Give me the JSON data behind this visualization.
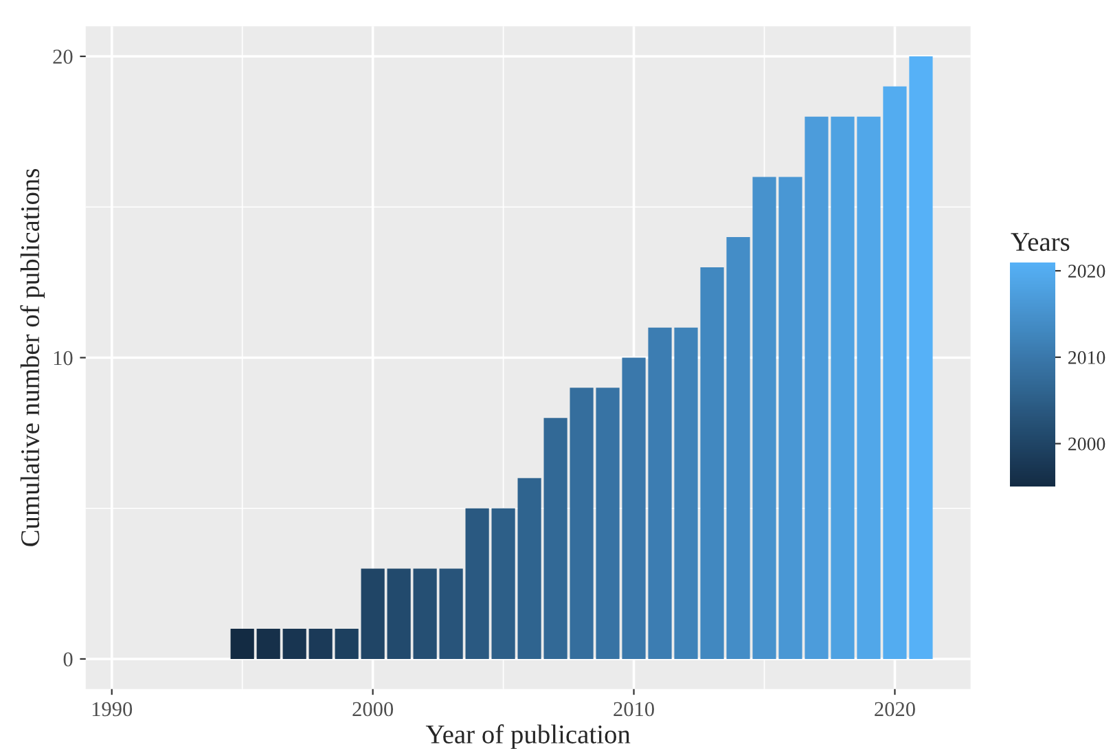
{
  "chart_data": {
    "type": "bar",
    "xlabel": "Year of publication",
    "ylabel": "Cumulative number of publications",
    "clabel": "Years",
    "x": [
      1995,
      1996,
      1997,
      1998,
      1999,
      2000,
      2001,
      2002,
      2003,
      2004,
      2005,
      2006,
      2007,
      2008,
      2009,
      2010,
      2011,
      2012,
      2013,
      2014,
      2015,
      2016,
      2017,
      2018,
      2019,
      2020,
      2021
    ],
    "values": [
      1,
      1,
      1,
      1,
      1,
      3,
      3,
      3,
      3,
      5,
      5,
      6,
      8,
      9,
      9,
      10,
      11,
      11,
      13,
      14,
      16,
      16,
      18,
      18,
      18,
      19,
      20
    ],
    "colors": [
      "#132b43",
      "#16304a",
      "#183551",
      "#1b3a58",
      "#1d405f",
      "#204566",
      "#224a6d",
      "#254f73",
      "#28547a",
      "#2a5981",
      "#2d5f88",
      "#2f648f",
      "#326996",
      "#356e9d",
      "#3773a4",
      "#3a78ab",
      "#3c7db2",
      "#3f83b9",
      "#4188c0",
      "#448dc7",
      "#4792cd",
      "#4997d4",
      "#4c9cdb",
      "#4ea2e2",
      "#51a7e9",
      "#53acf0",
      "#56b1f7"
    ],
    "xlim": [
      1989,
      2022.9
    ],
    "xticks": [
      1990,
      2000,
      2010,
      2020
    ],
    "ylim": [
      -1,
      21
    ],
    "yticks": [
      0,
      10,
      20
    ],
    "clim": [
      1995,
      2021
    ],
    "cticks": [
      2000,
      2010,
      2020
    ],
    "grid": true
  }
}
